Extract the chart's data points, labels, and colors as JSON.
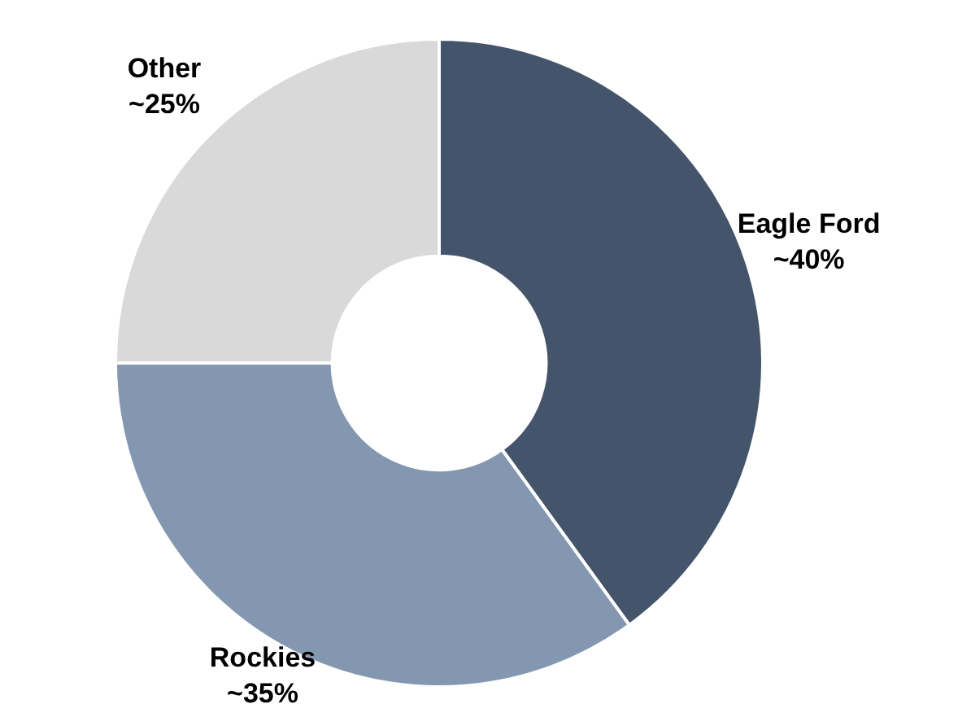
{
  "chart_data": {
    "type": "donut",
    "categories": [
      "Eagle Ford",
      "Rockies",
      "Other"
    ],
    "values": [
      40,
      35,
      25
    ],
    "colors": [
      "#44546a",
      "#8497b0",
      "#d9d9d9"
    ],
    "value_labels": [
      "~40%",
      "~35%",
      "~25%"
    ],
    "legend": false
  }
}
